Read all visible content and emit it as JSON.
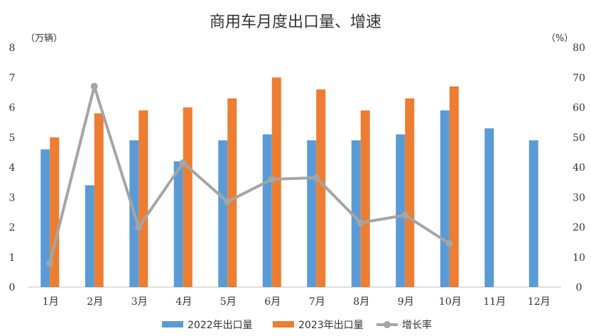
{
  "chart_data": {
    "type": "bar",
    "title": "商用车月度出口量、增速",
    "ylabel_left": "（万辆）",
    "ylabel_right": "（%）",
    "ylim_left": [
      0,
      8
    ],
    "ylim_right": [
      0,
      80
    ],
    "yticks_left": [
      "0",
      "1",
      "2",
      "3",
      "4",
      "5",
      "6",
      "7",
      "8"
    ],
    "yticks_right": [
      "0",
      "10",
      "20",
      "30",
      "40",
      "50",
      "60",
      "70",
      "80"
    ],
    "categories": [
      "1月",
      "2月",
      "3月",
      "4月",
      "5月",
      "6月",
      "7月",
      "8月",
      "9月",
      "10月",
      "11月",
      "12月"
    ],
    "grid": false,
    "legend_position": "bottom",
    "series": [
      {
        "name": "2022年出口量",
        "type": "bar",
        "axis": "left",
        "color": "#5B9BD5",
        "values": [
          4.6,
          3.4,
          4.9,
          4.2,
          4.9,
          5.1,
          4.9,
          4.9,
          5.1,
          5.9,
          5.3,
          4.9
        ]
      },
      {
        "name": "2023年出口量",
        "type": "bar",
        "axis": "left",
        "color": "#ED7D31",
        "values": [
          5.0,
          5.8,
          5.9,
          6.0,
          6.3,
          7.0,
          6.6,
          5.9,
          6.3,
          6.7,
          null,
          null
        ]
      },
      {
        "name": "增长率",
        "type": "line",
        "axis": "right",
        "color": "#A5A5A5",
        "values": [
          8.0,
          67.0,
          20.0,
          41.5,
          28.5,
          36.0,
          36.5,
          21.5,
          24.0,
          14.5,
          null,
          null
        ]
      }
    ]
  }
}
